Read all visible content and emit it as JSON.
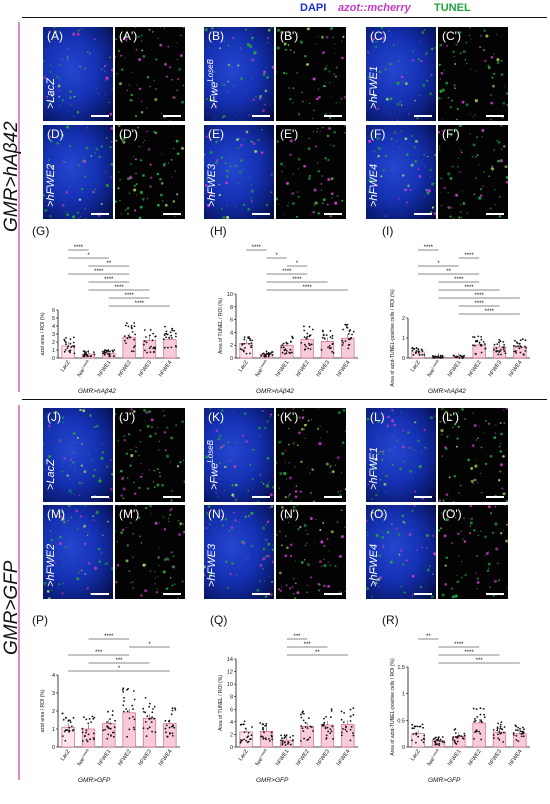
{
  "legend": {
    "dapi": "DAPI",
    "mcherry": "azot::mcherry",
    "tunel": "TUNEL",
    "colors": {
      "dapi": "#1d2fd6",
      "mcherry": "#c23bc4",
      "tunel": "#22a23b"
    }
  },
  "sections": [
    {
      "label": "GMR>hAβ42"
    },
    {
      "label": "GMR>GFP"
    }
  ],
  "panels": [
    {
      "label": "(A)",
      "geno": ">LacZ"
    },
    {
      "label": "(A')",
      "geno": ""
    },
    {
      "label": "(B)",
      "geno": ">Fwe",
      "geno_sup": "LoseB"
    },
    {
      "label": "(B')",
      "geno": ""
    },
    {
      "label": "(C)",
      "geno": ">hFWE1"
    },
    {
      "label": "(C')",
      "geno": ""
    },
    {
      "label": "(D)",
      "geno": ">hFWE2"
    },
    {
      "label": "(D')",
      "geno": ""
    },
    {
      "label": "(E)",
      "geno": ">hFWE3"
    },
    {
      "label": "(E')",
      "geno": ""
    },
    {
      "label": "(F)",
      "geno": ">hFWE4"
    },
    {
      "label": "(F')",
      "geno": ""
    },
    {
      "label": "(J)",
      "geno": ">LacZ"
    },
    {
      "label": "(J')",
      "geno": ""
    },
    {
      "label": "(K)",
      "geno": ">Fwe",
      "geno_sup": "LoseB"
    },
    {
      "label": "(K')",
      "geno": ""
    },
    {
      "label": "(L)",
      "geno": ">hFWE1"
    },
    {
      "label": "(L')",
      "geno": ""
    },
    {
      "label": "(M)",
      "geno": ">hFWE2"
    },
    {
      "label": "(M')",
      "geno": ""
    },
    {
      "label": "(N)",
      "geno": ">hFWE3"
    },
    {
      "label": "(N')",
      "geno": ""
    },
    {
      "label": "(O)",
      "geno": ">hFWE4"
    },
    {
      "label": "(O')",
      "geno": ""
    }
  ],
  "chart_data": [
    {
      "label": "(G)",
      "type": "bar",
      "ylabel": "azot area / ROI (%)",
      "xcaption": "GMR>hAβ42",
      "ylim": [
        0,
        6
      ],
      "ticks": [
        0,
        1,
        2,
        3,
        4,
        5,
        6
      ],
      "categories": [
        "LacZ",
        "fwe^LoseB",
        "hFWE1",
        "hFWE2",
        "hFWE3",
        "hFWE4"
      ],
      "values": [
        1.5,
        0.5,
        0.6,
        2.6,
        2.2,
        2.3
      ],
      "significance": [
        [
          "****",
          0,
          1
        ],
        [
          "*",
          0,
          2
        ],
        [
          "**",
          1,
          3
        ],
        [
          "****",
          0,
          3
        ],
        [
          "****",
          1,
          3
        ],
        [
          "****",
          1,
          4
        ],
        [
          "****",
          2,
          4
        ],
        [
          "****",
          2,
          5
        ]
      ]
    },
    {
      "label": "(H)",
      "type": "bar",
      "ylabel": "Area of TUNEL / ROI (%)",
      "xcaption": "GMR>hAβ42",
      "ylim": [
        0,
        10
      ],
      "ticks": [
        0,
        2,
        4,
        6,
        8,
        10
      ],
      "categories": [
        "LacZ",
        "fwe^LoseB",
        "hFWE1",
        "hFWE2",
        "hFWE3",
        "hFWE4"
      ],
      "values": [
        2.3,
        0.6,
        2.0,
        2.9,
        2.6,
        3.1
      ],
      "significance": [
        [
          "****",
          0,
          1
        ],
        [
          "*",
          1,
          2
        ],
        [
          "*",
          2,
          3
        ],
        [
          "****",
          1,
          3
        ],
        [
          "****",
          1,
          4
        ],
        [
          "****",
          1,
          5
        ]
      ]
    },
    {
      "label": "(I)",
      "type": "bar",
      "ylabel": "Area of azot-TUNEL-positive cells / ROI (%)",
      "xcaption": "GMR>hAβ42",
      "ylim": [
        0,
        2
      ],
      "ticks": [
        0,
        1,
        2
      ],
      "categories": [
        "LacZ",
        "fwe^LoseB",
        "hFWE1",
        "hFWE2",
        "hFWE3",
        "hFWE4"
      ],
      "values": [
        0.3,
        0.05,
        0.05,
        0.65,
        0.55,
        0.55
      ],
      "significance": [
        [
          "****",
          0,
          1
        ],
        [
          "****",
          2,
          3
        ],
        [
          "*",
          0,
          2
        ],
        [
          "**",
          0,
          3
        ],
        [
          "****",
          1,
          3
        ],
        [
          "****",
          1,
          4
        ],
        [
          "****",
          1,
          5
        ],
        [
          "****",
          2,
          4
        ],
        [
          "****",
          2,
          5
        ]
      ]
    },
    {
      "label": "(P)",
      "type": "bar",
      "ylabel": "azot area / ROI (%)",
      "xcaption": "GMR>GFP",
      "ylim": [
        0,
        4
      ],
      "ticks": [
        0,
        1,
        2,
        3,
        4
      ],
      "categories": [
        "LacZ",
        "fwe^LoseB",
        "hFWE1",
        "hFWE2",
        "hFWE3",
        "hFWE4"
      ],
      "values": [
        1.1,
        1.0,
        1.3,
        1.9,
        1.6,
        1.3
      ],
      "significance": [
        [
          "****",
          1,
          3
        ],
        [
          "*",
          3,
          5
        ],
        [
          "***",
          0,
          3
        ],
        [
          "***",
          1,
          4
        ],
        [
          "*",
          0,
          5
        ]
      ]
    },
    {
      "label": "(Q)",
      "type": "bar",
      "ylabel": "Area of TUNEL / ROI (%)",
      "xcaption": "GMR>GFP",
      "ylim": [
        0,
        14
      ],
      "ticks": [
        0,
        2,
        4,
        6,
        8,
        10,
        12,
        14
      ],
      "categories": [
        "LacZ",
        "fwe^LoseB",
        "hFWE1",
        "hFWE2",
        "hFWE3",
        "hFWE4"
      ],
      "values": [
        2.4,
        2.5,
        1.1,
        3.3,
        3.5,
        3.6
      ],
      "significance": [
        [
          "***",
          2,
          3
        ],
        [
          "***",
          2,
          4
        ],
        [
          "**",
          2,
          5
        ]
      ]
    },
    {
      "label": "(R)",
      "type": "bar",
      "ylabel": "Area of azot-TUNEL-positive cells / ROI (%)",
      "xcaption": "GMR>GFP",
      "ylim": [
        0,
        1.5
      ],
      "ticks": [
        0,
        0.5,
        1.0,
        1.5
      ],
      "categories": [
        "LacZ",
        "fwe^LoseB",
        "hFWE1",
        "hFWE2",
        "hFWE3",
        "hFWE4"
      ],
      "values": [
        0.25,
        0.12,
        0.2,
        0.45,
        0.28,
        0.25
      ],
      "significance": [
        [
          "**",
          0,
          1
        ],
        [
          "****",
          1,
          3
        ],
        [
          "****",
          1,
          4
        ],
        [
          "***",
          1,
          5
        ]
      ]
    }
  ]
}
